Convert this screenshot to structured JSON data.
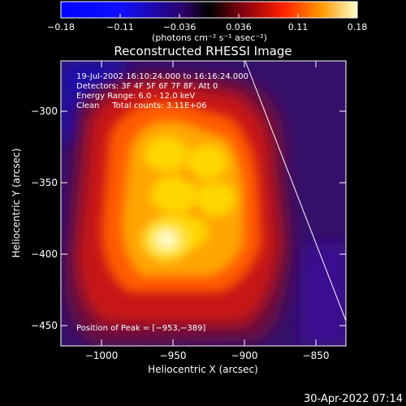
{
  "colorbar": {
    "ticks": [
      "−0.18",
      "−0.11",
      "−0.036",
      "0.036",
      "0.11",
      "0.18"
    ],
    "unit_label": "(photons cm⁻² s⁻¹ asec⁻²)",
    "min": -0.18,
    "max": 0.18
  },
  "image": {
    "title": "Reconstructed RHESSI Image",
    "annotations": [
      "19-Jul-2002 16:10:24.000 to 16:16:24.000",
      "Detectors: 3F 4F 5F 6F 7F 8F, Att 0",
      "Energy Range: 6.0 - 12.0 keV",
      "Clean     Total counts: 3.11E+06"
    ],
    "peak_label": "Position of Peak = [−953,−389]",
    "xlabel": "Heliocentric X (arcsec)",
    "ylabel": "Heliocentric Y (arcsec)",
    "x_ticks": [
      "−1000",
      "−950",
      "−900",
      "−850"
    ],
    "y_ticks": [
      "−300",
      "−350",
      "−400",
      "−450"
    ],
    "xlim": [
      -1025,
      -832
    ],
    "ylim": [
      -460,
      -270
    ]
  },
  "footer": {
    "timestamp": "30-Apr-2022 07:14"
  },
  "colors": {
    "background": "#000000",
    "text": "#ffffff",
    "limb": "#ffffff"
  }
}
